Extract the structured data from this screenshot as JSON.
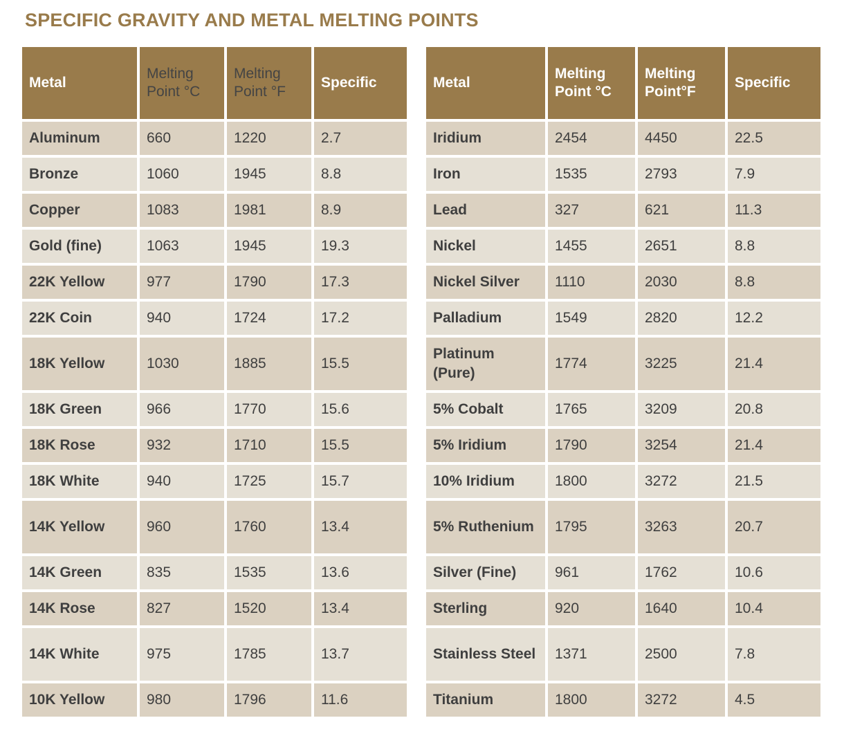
{
  "title": "SPECIFIC GRAVITY AND METAL MELTING POINTS",
  "colors": {
    "header": "#997b4b",
    "row_odd": "#dbd1c1",
    "row_even": "#e5e0d5",
    "title": "#997b4b"
  },
  "left_table": {
    "headers": [
      "Metal",
      "Melting Point °C",
      "Melting Point °F",
      "Specific"
    ],
    "rows": [
      [
        "Aluminum",
        "660",
        "1220",
        "2.7"
      ],
      [
        "Bronze",
        "1060",
        "1945",
        "8.8"
      ],
      [
        "Copper",
        "1083",
        "1981",
        "8.9"
      ],
      [
        "Gold (fine)",
        "1063",
        "1945",
        "19.3"
      ],
      [
        "22K Yellow",
        "977",
        "1790",
        "17.3"
      ],
      [
        "22K Coin",
        "940",
        "1724",
        "17.2"
      ],
      [
        "18K Yellow",
        "1030",
        "1885",
        "15.5"
      ],
      [
        "18K Green",
        "966",
        "1770",
        "15.6"
      ],
      [
        "18K Rose",
        "932",
        "1710",
        "15.5"
      ],
      [
        "18K White",
        "940",
        "1725",
        "15.7"
      ],
      [
        "14K Yellow",
        "960",
        "1760",
        "13.4"
      ],
      [
        "14K Green",
        "835",
        "1535",
        "13.6"
      ],
      [
        "14K Rose",
        "827",
        "1520",
        "13.4"
      ],
      [
        "14K White",
        "975",
        "1785",
        "13.7"
      ],
      [
        "10K Yellow",
        "980",
        "1796",
        "11.6"
      ]
    ]
  },
  "right_table": {
    "headers": [
      "Metal",
      "Melting Point °C",
      "Melting Point°F",
      "Specific"
    ],
    "rows": [
      [
        "Iridium",
        "2454",
        "4450",
        "22.5"
      ],
      [
        "Iron",
        "1535",
        "2793",
        "7.9"
      ],
      [
        "Lead",
        "327",
        "621",
        "11.3"
      ],
      [
        "Nickel",
        "1455",
        "2651",
        "8.8"
      ],
      [
        "Nickel Silver",
        "1110",
        "2030",
        "8.8"
      ],
      [
        "Palladium",
        "1549",
        "2820",
        "12.2"
      ],
      [
        "Platinum (Pure)",
        "1774",
        "3225",
        "21.4"
      ],
      [
        "5% Cobalt",
        "1765",
        "3209",
        "20.8"
      ],
      [
        "5% Iridium",
        "1790",
        "3254",
        "21.4"
      ],
      [
        "10% Iridium",
        "1800",
        "3272",
        "21.5"
      ],
      [
        "5% Ruthenium",
        "1795",
        "3263",
        "20.7"
      ],
      [
        "Silver (Fine)",
        "961",
        "1762",
        "10.6"
      ],
      [
        "Sterling",
        "920",
        "1640",
        "10.4"
      ],
      [
        "Stainless Steel",
        "1371",
        "2500",
        "7.8"
      ],
      [
        "Titanium",
        "1800",
        "3272",
        "4.5"
      ]
    ]
  }
}
